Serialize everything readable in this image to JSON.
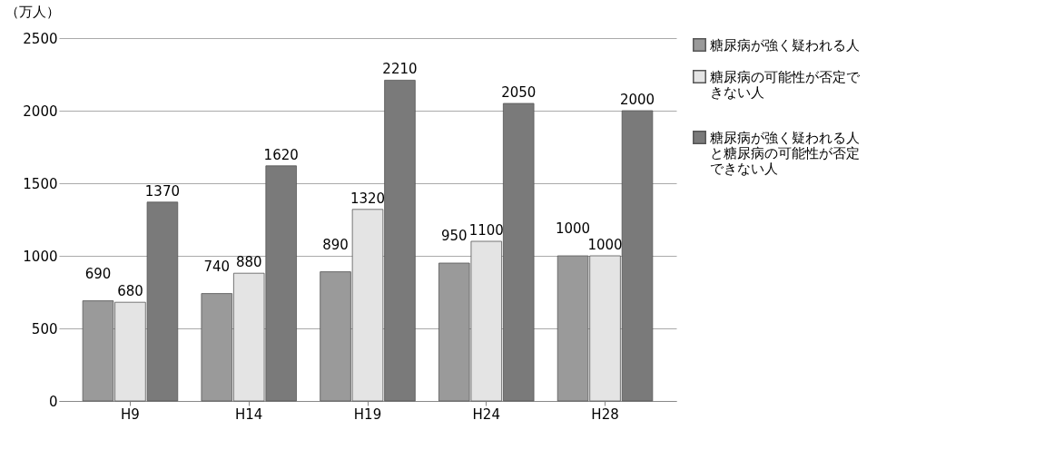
{
  "chart_data": {
    "type": "bar",
    "ylabel": "（万人）",
    "categories": [
      "H9",
      "H14",
      "H19",
      "H24",
      "H28"
    ],
    "series": [
      {
        "name": "糖尿病が強く疑われる人",
        "color": "#9a9a9a",
        "values": [
          690,
          740,
          890,
          950,
          1000
        ]
      },
      {
        "name": "糖尿病の可能性が否定できない人",
        "color": "#e4e4e4",
        "values": [
          680,
          880,
          1320,
          1100,
          1000
        ]
      },
      {
        "name": "糖尿病が強く疑われる人と糖尿病の可能性が否定できない人",
        "color": "#7a7a7a",
        "values": [
          1370,
          1620,
          2210,
          2050,
          2000
        ]
      }
    ],
    "ylim": [
      0,
      2500
    ],
    "yticks": [
      0,
      500,
      1000,
      1500,
      2000,
      2500
    ],
    "grid": "y",
    "legend": "right",
    "data_labels": true
  }
}
